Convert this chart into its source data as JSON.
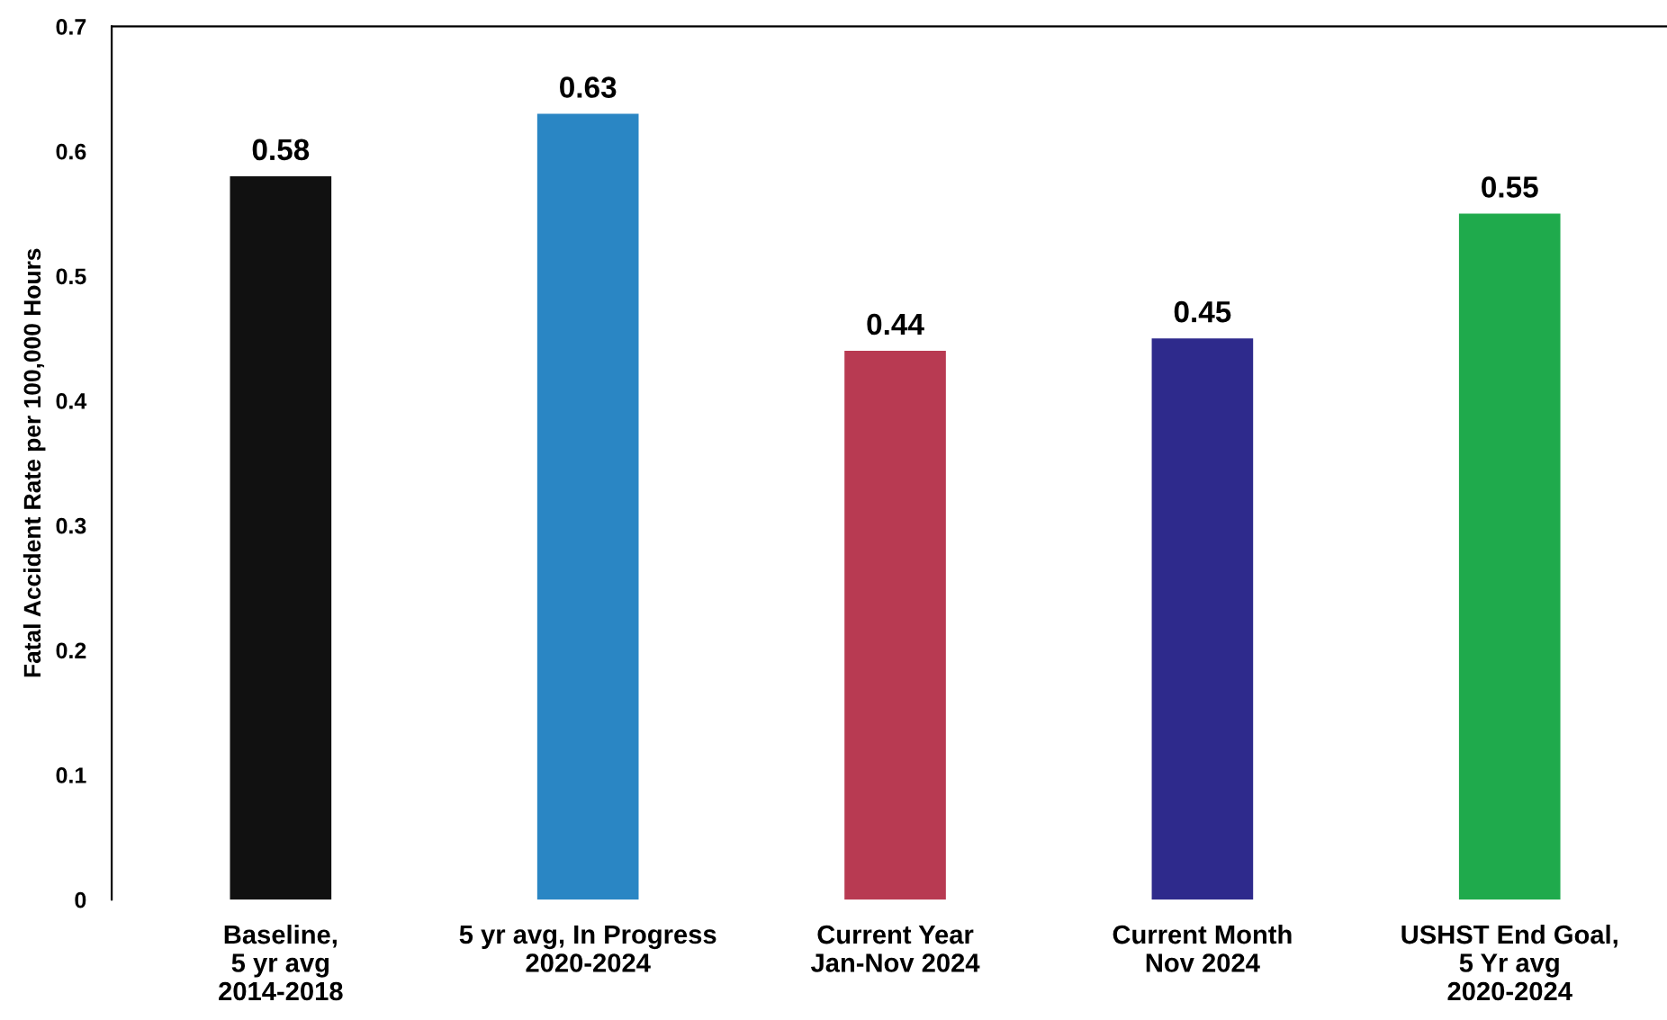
{
  "chart_data": {
    "type": "bar",
    "ylabel": "Fatal Accident Rate per 100,000 Hours",
    "categories": [
      "Baseline,\n5 yr avg\n2014-2018",
      "5 yr avg, In Progress\n2020-2024",
      "Current Year\nJan-Nov 2024",
      "Current Month\nNov 2024",
      "USHST End Goal,\n5 Yr avg\n2020-2024"
    ],
    "values": [
      0.58,
      0.63,
      0.44,
      0.45,
      0.55
    ],
    "colors": [
      "#111111",
      "#2a86c4",
      "#b83a52",
      "#2e2a8c",
      "#1faa4c"
    ],
    "ylim": [
      0,
      0.7
    ],
    "yticks": [
      0,
      0.1,
      0.2,
      0.3,
      0.4,
      0.5,
      0.6,
      0.7
    ],
    "data_labels": true,
    "grid": false,
    "legend": false
  }
}
